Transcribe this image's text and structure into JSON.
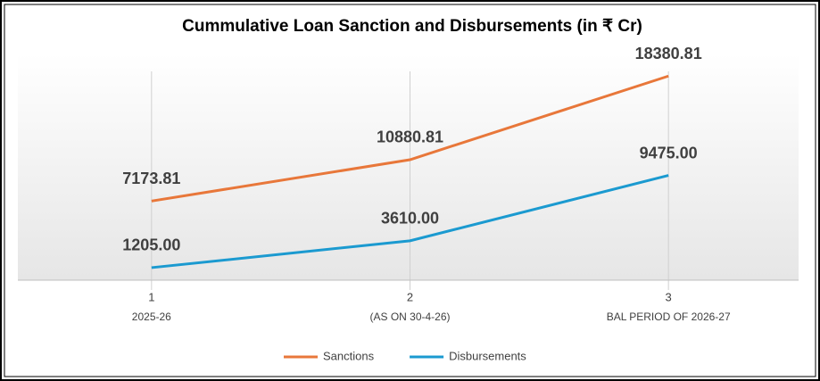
{
  "chart_data": {
    "type": "line",
    "title": "Cummulative Loan Sanction and Disbursements (in ₹ Cr)",
    "categories": [
      "1",
      "2",
      "3"
    ],
    "category_sublabels": [
      "2025-26",
      "(AS ON 30-4-26)",
      "BAL PERIOD OF 2026-27"
    ],
    "series": [
      {
        "name": "Sanctions",
        "color": "#e8773a",
        "values": [
          7173.81,
          10880.81,
          18380.81
        ]
      },
      {
        "name": "Disbursements",
        "color": "#1b9ad0",
        "values": [
          1205,
          3610,
          9475
        ],
        "value_labels": [
          "1205.00",
          "3610.00",
          "9475.00"
        ]
      }
    ],
    "ylim": [
      0,
      20000
    ],
    "legend": "bottom"
  }
}
